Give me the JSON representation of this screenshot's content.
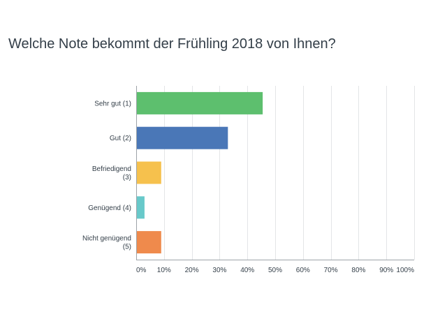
{
  "page": {
    "title": "Welche Note bekommt der Frühling 2018 von Ihnen?"
  },
  "chart_data": {
    "type": "bar",
    "orientation": "horizontal",
    "title": "Welche Note bekommt der Frühling 2018 von Ihnen?",
    "xlabel": "",
    "ylabel": "",
    "categories": [
      [
        "Sehr gut (1)"
      ],
      [
        "Gut (2)"
      ],
      [
        "Befriedigend",
        "(3)"
      ],
      [
        "Genügend (4)"
      ],
      [
        "Nicht genügend",
        "(5)"
      ]
    ],
    "values": [
      45.5,
      33,
      9,
      3,
      9
    ],
    "colors": [
      "#5dbf6e",
      "#4a77b7",
      "#f6c14d",
      "#68c9ca",
      "#ef8a4c"
    ],
    "xticks": [
      "0%",
      "10%",
      "20%",
      "30%",
      "40%",
      "50%",
      "60%",
      "70%",
      "80%",
      "90%",
      "100%"
    ],
    "xlim": [
      0,
      100
    ],
    "grid": true,
    "legend": "none"
  }
}
